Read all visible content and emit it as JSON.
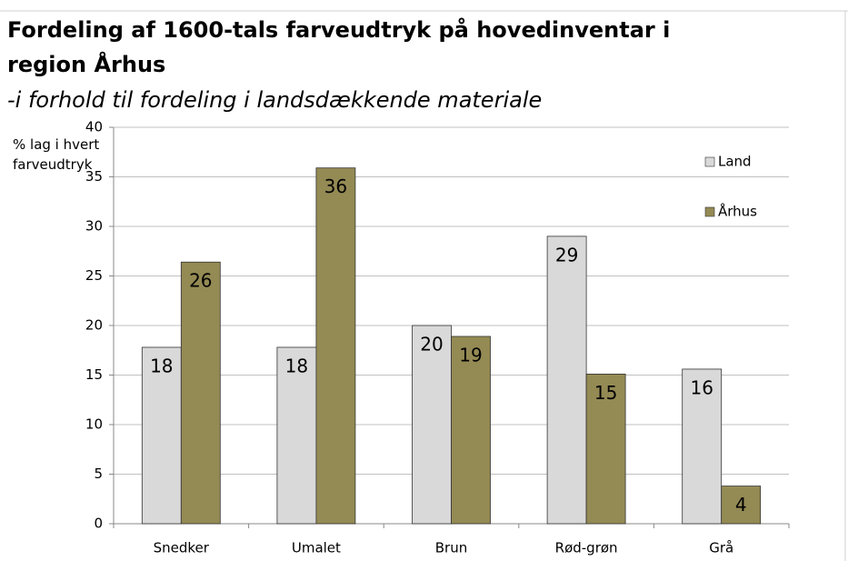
{
  "chart_data": {
    "type": "bar",
    "title": "Fordeling af 1600-tals farveudtryk på hovedinventar i region Århus",
    "subtitle": "-i forhold til fordeling i landsdækkende materiale",
    "y_label": "% lag i hvert farveudtryk",
    "categories": [
      "Snedker",
      "Umalet",
      "Brun",
      "Rød-grøn",
      "Grå"
    ],
    "series": [
      {
        "name": "Land",
        "color": "#d9d9d9",
        "values": [
          17.8,
          17.8,
          20,
          29,
          15.6
        ],
        "value_labels": [
          "18",
          "18",
          "20",
          "29",
          "16"
        ]
      },
      {
        "name": "Århus",
        "color": "#948a54",
        "values": [
          26.4,
          35.9,
          18.9,
          15.1,
          3.8
        ],
        "value_labels": [
          "26",
          "36",
          "19",
          "15",
          "4"
        ]
      }
    ],
    "ylim": [
      0,
      40
    ],
    "yticks": [
      0,
      5,
      10,
      15,
      20,
      25,
      30,
      35,
      40
    ],
    "grid": true,
    "legend": "right"
  }
}
